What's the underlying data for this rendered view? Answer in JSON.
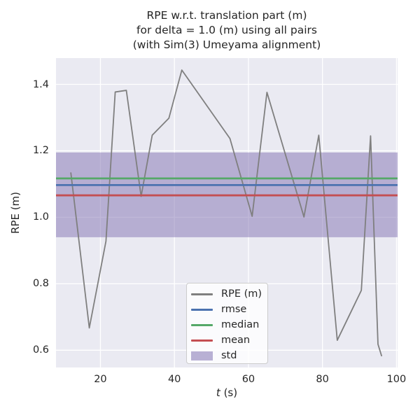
{
  "figure": {
    "title_lines": [
      "RPE w.r.t. translation part (m)",
      "for delta = 1.0 (m) using all pairs",
      "(with Sim(3) Umeyama alignment)"
    ],
    "xlabel_var": "t",
    "xlabel_rest": " (s)",
    "ylabel": "RPE (m)"
  },
  "colors": {
    "figure_bg": "#ffffff",
    "axes_bg": "#eaeaf2",
    "grid": "#ffffff",
    "text": "#262626",
    "rpe_line": "#7f7f7f",
    "rmse_line": "#4c72b0",
    "median_line": "#55a868",
    "mean_line": "#c44e52",
    "std_band": "#8172b2"
  },
  "chart_data": {
    "type": "line",
    "title": "RPE w.r.t. translation part (m) for delta = 1.0 (m) using all pairs (with Sim(3) Umeyama alignment)",
    "xlabel": "t (s)",
    "ylabel": "RPE (m)",
    "xlim": [
      8.0,
      100.3
    ],
    "ylim": [
      0.548,
      1.479
    ],
    "x_ticks": [
      20,
      40,
      60,
      80,
      100
    ],
    "y_ticks": [
      0.6,
      0.8,
      1.0,
      1.2,
      1.4
    ],
    "grid": true,
    "legend_position": "lower center",
    "stats": {
      "rmse": 1.097,
      "median": 1.117,
      "mean": 1.066,
      "std": 0.128
    },
    "series": [
      {
        "name": "RPE (m)",
        "kind": "line",
        "color_key": "rpe_line",
        "x": [
          12,
          17,
          21.5,
          24,
          27,
          31,
          34,
          38.5,
          42,
          55,
          61,
          65,
          75,
          79,
          84,
          90.5,
          93,
          95,
          96
        ],
        "y": [
          1.135,
          0.667,
          0.928,
          1.377,
          1.382,
          1.063,
          1.247,
          1.298,
          1.443,
          1.237,
          1.003,
          1.376,
          1.001,
          1.247,
          0.63,
          0.78,
          1.245,
          0.618,
          0.582
        ]
      },
      {
        "name": "rmse",
        "kind": "hline",
        "color_key": "rmse_line",
        "value": 1.097
      },
      {
        "name": "median",
        "kind": "hline",
        "color_key": "median_line",
        "value": 1.117
      },
      {
        "name": "mean",
        "kind": "hline",
        "color_key": "mean_line",
        "value": 1.066
      },
      {
        "name": "std",
        "kind": "band",
        "color_key": "std_band",
        "range": [
          0.94,
          1.195
        ]
      }
    ]
  }
}
